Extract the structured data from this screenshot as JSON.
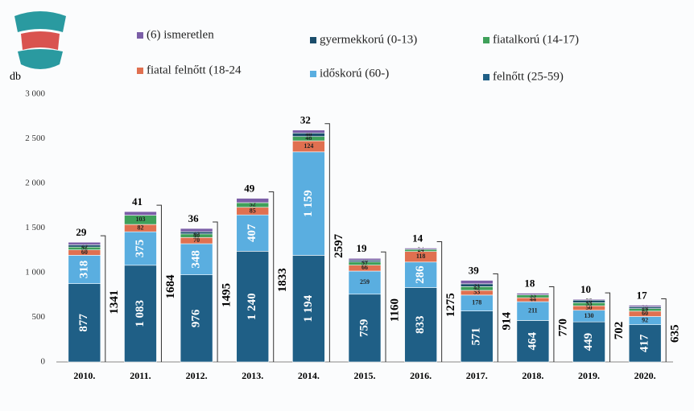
{
  "chart_data": {
    "type": "stacked-bar",
    "y_label": "db",
    "categories": [
      "2010.",
      "2011.",
      "2012.",
      "2013.",
      "2014.",
      "2015.",
      "2016.",
      "2017.",
      "2018.",
      "2019.",
      "2020."
    ],
    "series": [
      {
        "name": "felnőtt (25-59)",
        "color": "#1f5f86",
        "values": [
          877,
          1083,
          976,
          1240,
          1194,
          759,
          833,
          571,
          464,
          449,
          417
        ],
        "value_labels": [
          "877",
          "1 083",
          "976",
          "1 240",
          "1 194",
          "759",
          "833",
          "571",
          "464",
          "449",
          "417"
        ]
      },
      {
        "name": "időskorú (60-)",
        "color": "#5aaee0",
        "values": [
          318,
          375,
          348,
          407,
          1159,
          259,
          286,
          178,
          211,
          130,
          92
        ],
        "value_labels": [
          "318",
          "375",
          "348",
          "407",
          "1 159",
          "259",
          "286",
          "178",
          "211",
          "130",
          "92"
        ]
      },
      {
        "name": "fiatal felnőtt (18-24",
        "color": "#e07050",
        "values": [
          60,
          82,
          70,
          85,
          124,
          66,
          118,
          53,
          44,
          50,
          60
        ]
      },
      {
        "name": "fiatalkorú (14-17)",
        "color": "#3fa05a",
        "values": [
          32,
          103,
          40,
          52,
          48,
          37,
          24,
          42,
          33,
          35,
          29
        ]
      },
      {
        "name": "gyermekkorú (0-13)",
        "color": "#1b4d6b",
        "values": [
          25,
          0,
          25,
          0,
          40,
          20,
          0,
          31,
          0,
          28,
          20
        ]
      },
      {
        "name": "(6) ismeretlen",
        "color": "#7b5ea7",
        "values": [
          29,
          41,
          36,
          49,
          32,
          19,
          14,
          39,
          18,
          10,
          17
        ]
      }
    ],
    "totals": [
      1341,
      1684,
      1495,
      1833,
      2597,
      1160,
      1275,
      914,
      770,
      702,
      635
    ],
    "ylim": [
      0,
      3000
    ],
    "yticks": [
      0,
      500,
      {
        "value": 1000,
        "label": "1 000"
      },
      {
        "value": 1500,
        "label": "1 500"
      },
      {
        "value": 2000,
        "label": "2 000"
      },
      {
        "value": 2500,
        "label": "2 500"
      },
      {
        "value": 3000,
        "label": "3 000"
      }
    ],
    "grid": false
  }
}
